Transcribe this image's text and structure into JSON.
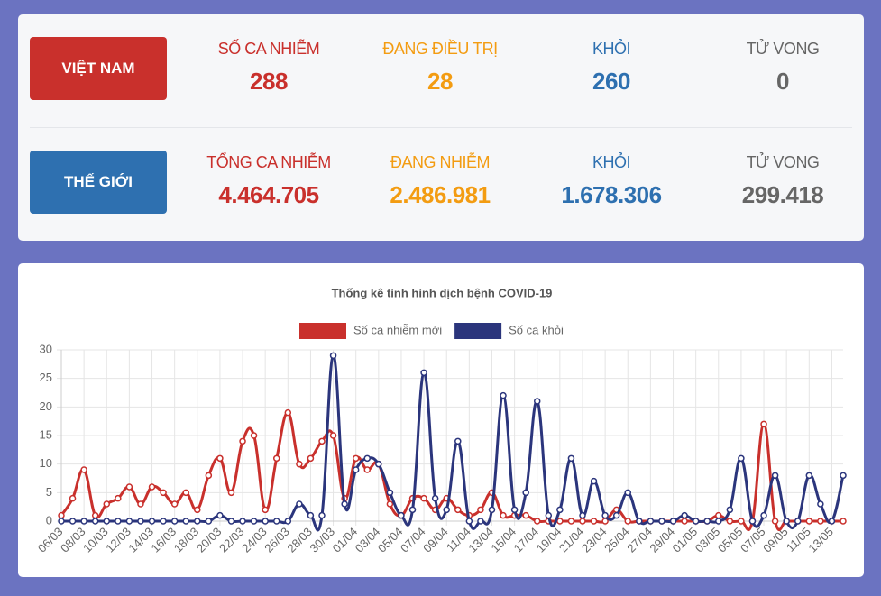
{
  "stats": {
    "vietnam": {
      "button": "VIỆT NAM",
      "items": [
        {
          "label": "SỐ CA NHIỄM",
          "value": "288"
        },
        {
          "label": "ĐANG ĐIỀU TRỊ",
          "value": "28"
        },
        {
          "label": "KHỎI",
          "value": "260"
        },
        {
          "label": "TỬ VONG",
          "value": "0"
        }
      ]
    },
    "world": {
      "button": "THẾ GIỚI",
      "items": [
        {
          "label": "TỔNG CA NHIỄM",
          "value": "4.464.705"
        },
        {
          "label": "ĐANG NHIỄM",
          "value": "2.486.981"
        },
        {
          "label": "KHỎI",
          "value": "1.678.306"
        },
        {
          "label": "TỬ VONG",
          "value": "299.418"
        }
      ]
    }
  },
  "chart_data": {
    "type": "line",
    "title": "Thống kê tình hình dịch bệnh COVID-19",
    "grid": true,
    "legend": "top",
    "categories": [
      "06/03",
      null,
      "08/03",
      null,
      "10/03",
      null,
      "12/03",
      null,
      "14/03",
      null,
      "16/03",
      null,
      "18/03",
      null,
      "20/03",
      null,
      "22/03",
      null,
      "24/03",
      null,
      "26/03",
      null,
      "28/03",
      null,
      "30/03",
      null,
      "01/04",
      null,
      "03/04",
      null,
      "05/04",
      null,
      "07/04",
      null,
      "09/04",
      null,
      "11/04",
      null,
      "13/04",
      null,
      "15/04",
      null,
      "17/04",
      null,
      "19/04",
      null,
      "21/04",
      null,
      "23/04",
      null,
      "25/04",
      null,
      "27/04",
      null,
      "29/04",
      null,
      "01/05",
      null,
      "03/05",
      null,
      "05/05",
      null,
      "07/05",
      null,
      "09/05",
      null,
      "11/05",
      null,
      "13/05",
      null
    ],
    "ylim": [
      0,
      30
    ],
    "yticks": [
      0,
      5,
      10,
      15,
      20,
      25,
      30
    ],
    "series": [
      {
        "name": "Số ca nhiễm mới",
        "color": "#c9302c",
        "values": [
          1,
          4,
          9,
          1,
          3,
          4,
          6,
          3,
          6,
          5,
          3,
          5,
          2,
          8,
          11,
          5,
          14,
          15,
          2,
          11,
          19,
          10,
          11,
          14,
          15,
          4,
          11,
          9,
          10,
          3,
          1,
          4,
          4,
          2,
          4,
          2,
          1,
          2,
          5,
          1,
          1,
          1,
          0,
          0,
          0,
          0,
          0,
          0,
          0,
          2,
          0,
          0,
          0,
          0,
          0,
          0,
          0,
          0,
          1,
          0,
          0,
          0,
          17,
          0,
          0,
          0,
          0,
          0,
          0,
          0
        ]
      },
      {
        "name": "Số ca khỏi",
        "color": "#2b357c",
        "values": [
          0,
          0,
          0,
          0,
          0,
          0,
          0,
          0,
          0,
          0,
          0,
          0,
          0,
          0,
          1,
          0,
          0,
          0,
          0,
          0,
          0,
          3,
          1,
          1,
          29,
          3,
          9,
          11,
          10,
          5,
          1,
          2,
          26,
          4,
          2,
          14,
          0,
          0,
          2,
          22,
          2,
          5,
          21,
          1,
          2,
          11,
          1,
          7,
          1,
          1,
          5,
          0,
          0,
          0,
          0,
          1,
          0,
          0,
          0,
          2,
          11,
          0,
          1,
          8,
          0,
          0,
          8,
          3,
          0,
          8
        ]
      }
    ]
  }
}
